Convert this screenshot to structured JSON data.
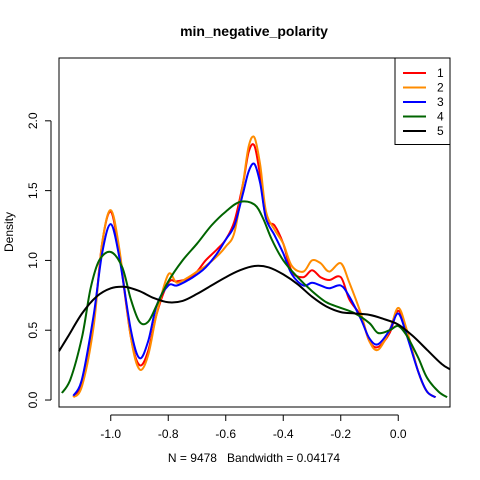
{
  "chart_data": {
    "type": "line",
    "title": "min_negative_polarity",
    "xlabel": "N = 9478   Bandwidth = 0.04174",
    "ylabel": "Density",
    "xlim": [
      -1.18,
      0.18
    ],
    "ylim": [
      -0.05,
      2.45
    ],
    "x_ticks": [
      -1.0,
      -0.8,
      -0.6,
      -0.4,
      -0.2,
      0.0
    ],
    "x_tick_labels": [
      "-1.0",
      "-0.8",
      "-0.6",
      "-0.4",
      "-0.2",
      "0.0"
    ],
    "y_ticks": [
      0.0,
      0.5,
      1.0,
      1.5,
      2.0
    ],
    "y_tick_labels": [
      "0.0",
      "0.5",
      "1.0",
      "1.5",
      "2.0"
    ],
    "grid": false,
    "legend_position": "top-right",
    "series": [
      {
        "name": "1",
        "color": "#ff0000",
        "x": [
          -1.13,
          -1.1,
          -1.06,
          -1.03,
          -1.0,
          -0.97,
          -0.93,
          -0.9,
          -0.87,
          -0.84,
          -0.8,
          -0.77,
          -0.73,
          -0.7,
          -0.67,
          -0.63,
          -0.6,
          -0.57,
          -0.54,
          -0.52,
          -0.5,
          -0.48,
          -0.46,
          -0.43,
          -0.4,
          -0.37,
          -0.33,
          -0.3,
          -0.27,
          -0.24,
          -0.2,
          -0.17,
          -0.13,
          -0.1,
          -0.07,
          -0.03,
          0.0,
          0.03,
          0.07,
          0.1,
          0.13
        ],
        "y": [
          0.02,
          0.12,
          0.55,
          1.12,
          1.35,
          1.05,
          0.45,
          0.25,
          0.35,
          0.62,
          0.84,
          0.85,
          0.87,
          0.92,
          1.0,
          1.08,
          1.15,
          1.28,
          1.55,
          1.78,
          1.82,
          1.6,
          1.3,
          1.25,
          1.12,
          0.92,
          0.88,
          0.93,
          0.88,
          0.86,
          0.88,
          0.72,
          0.6,
          0.42,
          0.38,
          0.48,
          0.64,
          0.48,
          0.2,
          0.06,
          0.02
        ]
      },
      {
        "name": "2",
        "color": "#ff8c00",
        "x": [
          -1.13,
          -1.1,
          -1.06,
          -1.03,
          -1.0,
          -0.97,
          -0.93,
          -0.9,
          -0.87,
          -0.84,
          -0.8,
          -0.77,
          -0.73,
          -0.7,
          -0.67,
          -0.63,
          -0.6,
          -0.57,
          -0.54,
          -0.52,
          -0.5,
          -0.48,
          -0.46,
          -0.43,
          -0.4,
          -0.37,
          -0.33,
          -0.3,
          -0.27,
          -0.24,
          -0.2,
          -0.17,
          -0.13,
          -0.1,
          -0.07,
          -0.03,
          0.0,
          0.03,
          0.07,
          0.1,
          0.13
        ],
        "y": [
          0.02,
          0.1,
          0.52,
          1.12,
          1.36,
          1.08,
          0.45,
          0.22,
          0.32,
          0.62,
          0.9,
          0.84,
          0.88,
          0.92,
          0.96,
          1.03,
          1.1,
          1.2,
          1.55,
          1.82,
          1.88,
          1.68,
          1.35,
          1.22,
          1.12,
          0.96,
          0.92,
          1.0,
          0.98,
          0.92,
          0.98,
          0.84,
          0.62,
          0.42,
          0.36,
          0.5,
          0.66,
          0.5,
          0.2,
          0.06,
          0.02
        ]
      },
      {
        "name": "3",
        "color": "#0000ff",
        "x": [
          -1.13,
          -1.1,
          -1.06,
          -1.03,
          -1.0,
          -0.97,
          -0.93,
          -0.9,
          -0.87,
          -0.84,
          -0.8,
          -0.77,
          -0.73,
          -0.7,
          -0.67,
          -0.63,
          -0.6,
          -0.57,
          -0.54,
          -0.52,
          -0.5,
          -0.48,
          -0.46,
          -0.43,
          -0.4,
          -0.37,
          -0.33,
          -0.3,
          -0.27,
          -0.24,
          -0.2,
          -0.17,
          -0.13,
          -0.1,
          -0.07,
          -0.03,
          0.0,
          0.03,
          0.07,
          0.1,
          0.13
        ],
        "y": [
          0.03,
          0.15,
          0.6,
          1.05,
          1.26,
          1.02,
          0.5,
          0.3,
          0.42,
          0.68,
          0.82,
          0.82,
          0.86,
          0.9,
          0.95,
          1.05,
          1.15,
          1.25,
          1.48,
          1.64,
          1.69,
          1.55,
          1.3,
          1.18,
          1.05,
          0.9,
          0.82,
          0.84,
          0.82,
          0.8,
          0.82,
          0.74,
          0.58,
          0.44,
          0.4,
          0.5,
          0.62,
          0.46,
          0.2,
          0.06,
          0.02
        ]
      },
      {
        "name": "4",
        "color": "#006400",
        "x": [
          -1.17,
          -1.14,
          -1.1,
          -1.07,
          -1.04,
          -1.0,
          -0.96,
          -0.93,
          -0.9,
          -0.87,
          -0.84,
          -0.8,
          -0.75,
          -0.7,
          -0.65,
          -0.6,
          -0.55,
          -0.5,
          -0.47,
          -0.44,
          -0.4,
          -0.35,
          -0.3,
          -0.25,
          -0.2,
          -0.15,
          -0.1,
          -0.07,
          -0.03,
          0.0,
          0.03,
          0.07,
          0.1,
          0.14,
          0.17
        ],
        "y": [
          0.05,
          0.15,
          0.45,
          0.8,
          1.0,
          1.06,
          0.95,
          0.72,
          0.56,
          0.56,
          0.68,
          0.85,
          1.0,
          1.12,
          1.25,
          1.35,
          1.42,
          1.4,
          1.3,
          1.15,
          1.0,
          0.88,
          0.78,
          0.7,
          0.66,
          0.62,
          0.55,
          0.48,
          0.5,
          0.53,
          0.46,
          0.3,
          0.16,
          0.06,
          0.02
        ]
      },
      {
        "name": "5",
        "color": "#000000",
        "x": [
          -1.18,
          -1.15,
          -1.1,
          -1.05,
          -1.0,
          -0.95,
          -0.9,
          -0.85,
          -0.8,
          -0.75,
          -0.7,
          -0.65,
          -0.6,
          -0.55,
          -0.5,
          -0.45,
          -0.4,
          -0.35,
          -0.3,
          -0.25,
          -0.2,
          -0.15,
          -0.1,
          -0.05,
          0.0,
          0.05,
          0.1,
          0.15,
          0.18
        ],
        "y": [
          0.35,
          0.45,
          0.62,
          0.74,
          0.8,
          0.81,
          0.78,
          0.73,
          0.7,
          0.71,
          0.76,
          0.82,
          0.88,
          0.93,
          0.96,
          0.95,
          0.9,
          0.83,
          0.74,
          0.67,
          0.63,
          0.62,
          0.61,
          0.58,
          0.54,
          0.46,
          0.36,
          0.26,
          0.22
        ]
      }
    ]
  }
}
